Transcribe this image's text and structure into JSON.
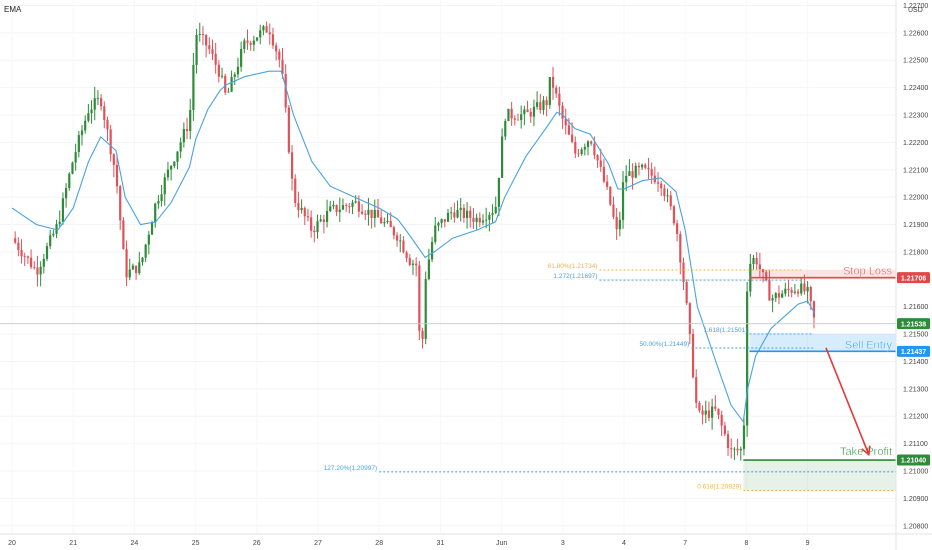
{
  "chart_data": {
    "type": "candlestick",
    "indicator_label": "EMA",
    "currency": "USD",
    "colors": {
      "up": "#2e8b3a",
      "down": "#e0525a",
      "ema": "#4aa3e0",
      "stop": "#e04848",
      "entry": "#2196f3",
      "profit": "#2e8b3a",
      "fib_orange": "#f0b44a",
      "arrow": "#e03a3a"
    },
    "y_axis": {
      "range": [
        1.2077,
        1.2272
      ],
      "ticks": [
        "1.22700",
        "1.22600",
        "1.22500",
        "1.22400",
        "1.22300",
        "1.22200",
        "1.22100",
        "1.22000",
        "1.21900",
        "1.21800",
        "1.21700",
        "1.21600",
        "1.21500",
        "1.21400",
        "1.21300",
        "1.21200",
        "1.21100",
        "1.21000",
        "1.20900",
        "1.20800"
      ]
    },
    "x_axis": {
      "labels": [
        "20",
        "21",
        "24",
        "25",
        "26",
        "27",
        "28",
        "31",
        "Jun",
        "3",
        "4",
        "7",
        "8",
        "9"
      ]
    },
    "price_path": [
      [
        0,
        1.2185
      ],
      [
        0.4,
        1.2173
      ],
      [
        0.75,
        1.219
      ],
      [
        1.0,
        1.2214
      ],
      [
        1.25,
        1.2232
      ],
      [
        1.45,
        1.2236
      ],
      [
        1.7,
        1.2208
      ],
      [
        1.85,
        1.2172
      ],
      [
        2.1,
        1.2175
      ],
      [
        2.35,
        1.2198
      ],
      [
        2.6,
        1.2212
      ],
      [
        2.9,
        1.2228
      ],
      [
        3.0,
        1.226
      ],
      [
        3.2,
        1.2255
      ],
      [
        3.4,
        1.2245
      ],
      [
        3.5,
        1.2236
      ],
      [
        3.8,
        1.2256
      ],
      [
        4.2,
        1.2262
      ],
      [
        4.4,
        1.2248
      ],
      [
        4.6,
        1.22
      ],
      [
        4.9,
        1.2188
      ],
      [
        5.2,
        1.2195
      ],
      [
        5.6,
        1.2198
      ],
      [
        6.0,
        1.2192
      ],
      [
        6.3,
        1.2186
      ],
      [
        6.5,
        1.2177
      ],
      [
        6.62,
        1.2175
      ],
      [
        6.68,
        1.2134
      ],
      [
        6.75,
        1.217
      ],
      [
        6.9,
        1.2188
      ],
      [
        7.2,
        1.2195
      ],
      [
        7.6,
        1.2192
      ],
      [
        7.9,
        1.2196
      ],
      [
        8.05,
        1.223
      ],
      [
        8.4,
        1.223
      ],
      [
        8.75,
        1.2235
      ],
      [
        8.8,
        1.2244
      ],
      [
        9.0,
        1.2228
      ],
      [
        9.2,
        1.2216
      ],
      [
        9.45,
        1.2222
      ],
      [
        9.75,
        1.22
      ],
      [
        9.9,
        1.2185
      ],
      [
        10.0,
        1.2208
      ],
      [
        10.3,
        1.221
      ],
      [
        10.6,
        1.2206
      ],
      [
        10.85,
        1.219
      ],
      [
        11.0,
        1.2165
      ],
      [
        11.2,
        1.212
      ],
      [
        11.5,
        1.2122
      ],
      [
        11.75,
        1.2107
      ],
      [
        11.95,
        1.2108
      ],
      [
        12.02,
        1.2175
      ],
      [
        12.15,
        1.2178
      ],
      [
        12.4,
        1.2163
      ],
      [
        12.7,
        1.2166
      ],
      [
        12.85,
        1.2167
      ],
      [
        13.0,
        1.2165
      ],
      [
        13.12,
        1.21538
      ]
    ],
    "ema_path": [
      [
        0,
        1.2196
      ],
      [
        0.4,
        1.219
      ],
      [
        0.75,
        1.2188
      ],
      [
        1.0,
        1.2196
      ],
      [
        1.25,
        1.2213
      ],
      [
        1.45,
        1.2222
      ],
      [
        1.7,
        1.2217
      ],
      [
        1.85,
        1.22
      ],
      [
        2.1,
        1.219
      ],
      [
        2.35,
        1.2191
      ],
      [
        2.6,
        1.2198
      ],
      [
        2.9,
        1.2211
      ],
      [
        3.0,
        1.2221
      ],
      [
        3.2,
        1.2232
      ],
      [
        3.4,
        1.2239
      ],
      [
        3.5,
        1.2241
      ],
      [
        3.8,
        1.2244
      ],
      [
        4.2,
        1.2246
      ],
      [
        4.4,
        1.2246
      ],
      [
        4.6,
        1.223
      ],
      [
        4.9,
        1.2213
      ],
      [
        5.2,
        1.2204
      ],
      [
        5.6,
        1.22
      ],
      [
        6.0,
        1.2196
      ],
      [
        6.3,
        1.2192
      ],
      [
        6.5,
        1.2186
      ],
      [
        6.75,
        1.2178
      ],
      [
        6.9,
        1.218
      ],
      [
        7.2,
        1.2185
      ],
      [
        7.6,
        1.2188
      ],
      [
        7.9,
        1.2191
      ],
      [
        8.05,
        1.22
      ],
      [
        8.4,
        1.2215
      ],
      [
        8.75,
        1.2226
      ],
      [
        8.9,
        1.2231
      ],
      [
        9.0,
        1.223
      ],
      [
        9.2,
        1.2225
      ],
      [
        9.45,
        1.2223
      ],
      [
        9.75,
        1.2212
      ],
      [
        9.9,
        1.2203
      ],
      [
        10.0,
        1.2203
      ],
      [
        10.3,
        1.2206
      ],
      [
        10.6,
        1.2207
      ],
      [
        10.85,
        1.2202
      ],
      [
        11.0,
        1.2188
      ],
      [
        11.2,
        1.216
      ],
      [
        11.5,
        1.214
      ],
      [
        11.75,
        1.2124
      ],
      [
        11.95,
        1.2118
      ],
      [
        12.02,
        1.213
      ],
      [
        12.15,
        1.2142
      ],
      [
        12.4,
        1.2152
      ],
      [
        12.7,
        1.2158
      ],
      [
        12.85,
        1.2161
      ],
      [
        13.0,
        1.2162
      ],
      [
        13.12,
        1.21575
      ]
    ],
    "levels": {
      "current": {
        "value": 1.21538,
        "label": "1.21538"
      },
      "stop_loss": {
        "value": 1.21706,
        "label": "1.21706",
        "text": "Stop Loss"
      },
      "sell_entry": {
        "value": 1.21437,
        "label": "1.21437",
        "text": "Sell Entry"
      },
      "take_profit": {
        "value": 1.2104,
        "label": "1.21040",
        "text": "Take Profit"
      }
    },
    "zones": {
      "stop": {
        "x_start": 12.05,
        "top": 1.21735,
        "bottom": 1.21706
      },
      "entry": {
        "x_start": 12.05,
        "top": 1.21501,
        "bottom": 1.21437
      },
      "profit": {
        "x_start": 11.95,
        "top": 1.2104,
        "bottom": 1.20929
      }
    },
    "fib_annotations": [
      {
        "text": "61.80%(1.21734)",
        "value": 1.21734,
        "x_from": 9.6,
        "x_to": 12.9,
        "color": "#f0b44a",
        "style": "dotted"
      },
      {
        "text": "1.272(1.21697)",
        "value": 1.21697,
        "x_from": 9.6,
        "x_to": 12.9,
        "color": "#4aa3e0",
        "style": "dotted"
      },
      {
        "text": "1.618(1.21501)",
        "value": 1.21501,
        "x_from": 12.05,
        "x_to": 13.1,
        "color": "#4aa3e0",
        "style": "dotted"
      },
      {
        "text": "50.00%(1.21449)",
        "value": 1.21449,
        "x_from": 11.1,
        "x_to": 13.1,
        "color": "#4aa3e0",
        "style": "dotted"
      },
      {
        "text": "127.20%(1.20997)",
        "value": 1.20997,
        "x_from": 6.0,
        "x_to": 15.3,
        "color": "#4aa3e0",
        "style": "dotted"
      },
      {
        "text": "0.618(1.20929)",
        "value": 1.20929,
        "x_from": 11.95,
        "x_to": 15.3,
        "color": "#f0b44a",
        "style": "dotted"
      }
    ],
    "arrow": {
      "from": [
        13.3,
        1.2145
      ],
      "to": [
        14.0,
        1.2106
      ]
    }
  }
}
